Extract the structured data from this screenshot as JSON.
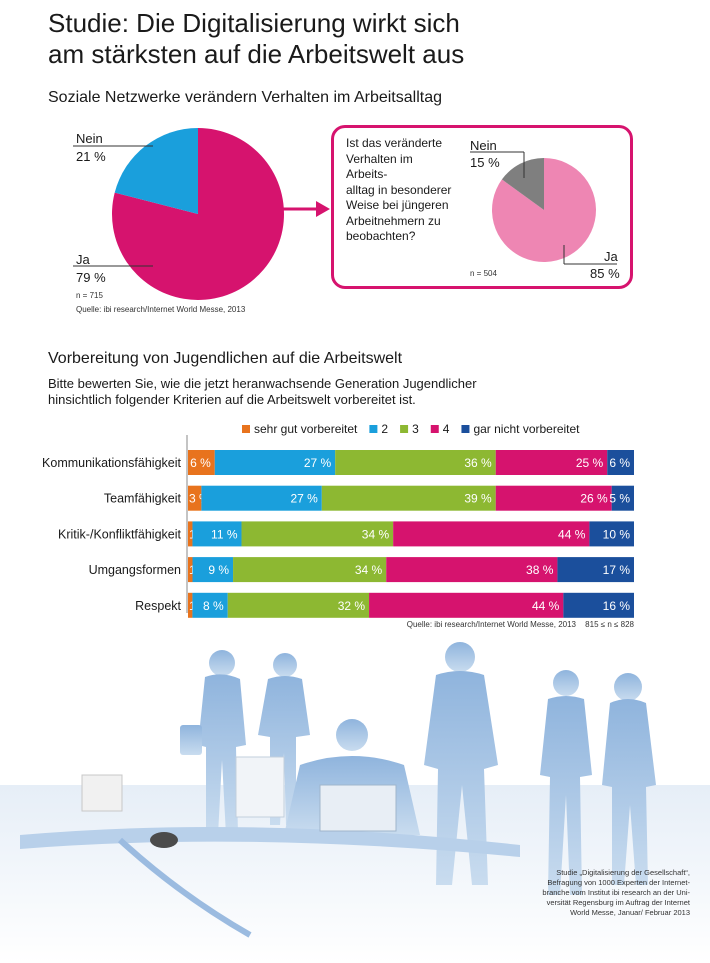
{
  "title": "Studie: Die Digitalisierung wirkt sich am stärksten auf die Arbeitswelt aus",
  "title_line1": "Studie: Die Digitalisierung wirkt sich",
  "title_line2": "am stärksten auf die Arbeitswelt aus",
  "section1": {
    "title": "Soziale Netzwerke verändern Verhalten im Arbeitsalltag",
    "question_lines": [
      "Ist das veränderte",
      "Verhalten im Arbeits-",
      "alltag in besonderer",
      "Weise bei jüngeren",
      "Arbeitnehmern zu",
      "beobachten?"
    ]
  },
  "section2": {
    "title": "Vorbereitung von Jugendlichen auf die Arbeitswelt",
    "subtitle_line1": "Bitte bewerten Sie, wie die jetzt heranwachsende Generation Jugendlicher",
    "subtitle_line2": "hinsichtlich folgender Kriterien auf die Arbeitswelt vorbereitet ist."
  },
  "footnote_lines": [
    "Studie „Digitalisierung der Gesellschaft“,",
    "Befragung von 1000 Experten der Internet-",
    "branche vom Institut ibi research an der Uni-",
    "versität Regensburg im Auftrag der Internet",
    "World Messe, Januar/ Februar 2013"
  ],
  "colors": {
    "magenta": "#d6136e",
    "cyan": "#1a9fdc",
    "orange": "#e8731d",
    "green": "#8db832",
    "navy": "#1b4f9c",
    "pink_light": "#ee86b3",
    "grey": "#7f7f7f"
  },
  "chart_data": [
    {
      "type": "pie",
      "slices": [
        {
          "label": "Ja",
          "value": 79,
          "value_label": "79 %",
          "color": "#d6136e"
        },
        {
          "label": "Nein",
          "value": 21,
          "value_label": "21 %",
          "color": "#1a9fdc"
        }
      ],
      "n_label": "n = 715",
      "source": "Quelle: ibi research/Internet World Messe, 2013"
    },
    {
      "type": "pie",
      "slices": [
        {
          "label": "Ja",
          "value": 85,
          "value_label": "85 %",
          "color": "#ee86b3"
        },
        {
          "label": "Nein",
          "value": 15,
          "value_label": "15 %",
          "color": "#7f7f7f"
        }
      ],
      "n_label": "n = 504"
    },
    {
      "type": "bar",
      "orientation": "horizontal",
      "stacked": true,
      "legend_position": "top",
      "categories": [
        "Kommunikationsfähigkeit",
        "Teamfähigkeit",
        "Kritik-/Konfliktfähigkeit",
        "Umgangsformen",
        "Respekt"
      ],
      "series": [
        {
          "name": "sehr gut vorbereitet",
          "color": "#e8731d",
          "values": [
            6,
            3,
            1,
            1,
            1
          ]
        },
        {
          "name": "2",
          "color": "#1a9fdc",
          "values": [
            27,
            27,
            11,
            9,
            8
          ]
        },
        {
          "name": "3",
          "color": "#8db832",
          "values": [
            36,
            39,
            34,
            34,
            32
          ]
        },
        {
          "name": "4",
          "color": "#d6136e",
          "values": [
            25,
            26,
            44,
            38,
            44
          ]
        },
        {
          "name": "gar nicht vorbereitet",
          "color": "#1b4f9c",
          "values": [
            6,
            5,
            10,
            17,
            16
          ]
        }
      ],
      "value_suffix": " %",
      "source": "Quelle: ibi research/Internet World Messe, 2013",
      "n_label": "815 ≤ n ≤ 828"
    }
  ]
}
